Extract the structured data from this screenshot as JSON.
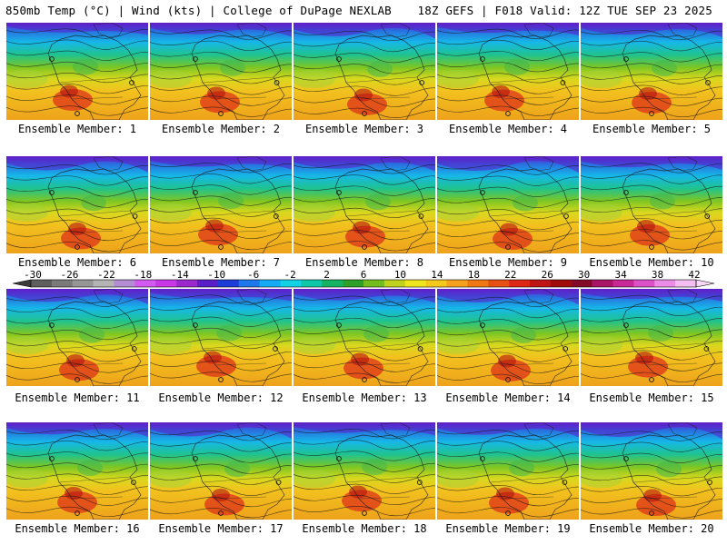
{
  "header": {
    "left": "850mb Temp (°C) | Wind (kts) | College of DuPage NEXLAB",
    "right": "18Z GEFS | F018 Valid: 12Z TUE SEP 23 2025"
  },
  "panels": [
    {
      "label": "Ensemble Member: 1"
    },
    {
      "label": "Ensemble Member: 2"
    },
    {
      "label": "Ensemble Member: 3"
    },
    {
      "label": "Ensemble Member: 4"
    },
    {
      "label": "Ensemble Member: 5"
    },
    {
      "label": "Ensemble Member: 6"
    },
    {
      "label": "Ensemble Member: 7"
    },
    {
      "label": "Ensemble Member: 8"
    },
    {
      "label": "Ensemble Member: 9"
    },
    {
      "label": "Ensemble Member: 10"
    },
    {
      "label": "Ensemble Member: 11"
    },
    {
      "label": "Ensemble Member: 12"
    },
    {
      "label": "Ensemble Member: 13"
    },
    {
      "label": "Ensemble Member: 14"
    },
    {
      "label": "Ensemble Member: 15"
    },
    {
      "label": "Ensemble Member: 16"
    },
    {
      "label": "Ensemble Member: 17"
    },
    {
      "label": "Ensemble Member: 18"
    },
    {
      "label": "Ensemble Member: 19"
    },
    {
      "label": "Ensemble Member: 20"
    }
  ],
  "chart_data": {
    "type": "heatmap",
    "colorbar": {
      "ticks": [
        "-30",
        "-26",
        "-22",
        "-18",
        "-14",
        "-10",
        "-6",
        "-2",
        "2",
        "6",
        "10",
        "14",
        "18",
        "22",
        "26",
        "30",
        "34",
        "38",
        "42"
      ],
      "colors": [
        "#5e5e5e",
        "#7a7a7a",
        "#969696",
        "#b4b4b4",
        "#b48cd2",
        "#d25af0",
        "#c837e6",
        "#9b28cd",
        "#5a1ec8",
        "#1e3cd7",
        "#1e78eb",
        "#14aaf5",
        "#14d2e6",
        "#0fc8aa",
        "#14b464",
        "#2da028",
        "#73be1e",
        "#bed21e",
        "#f0e61e",
        "#f5c81e",
        "#f5a01e",
        "#f07814",
        "#e65014",
        "#dc2814",
        "#be1414",
        "#a00a0a",
        "#820a28",
        "#aa1464",
        "#c82896",
        "#dc50c8",
        "#eb8ce6",
        "#f5bef0"
      ]
    }
  }
}
